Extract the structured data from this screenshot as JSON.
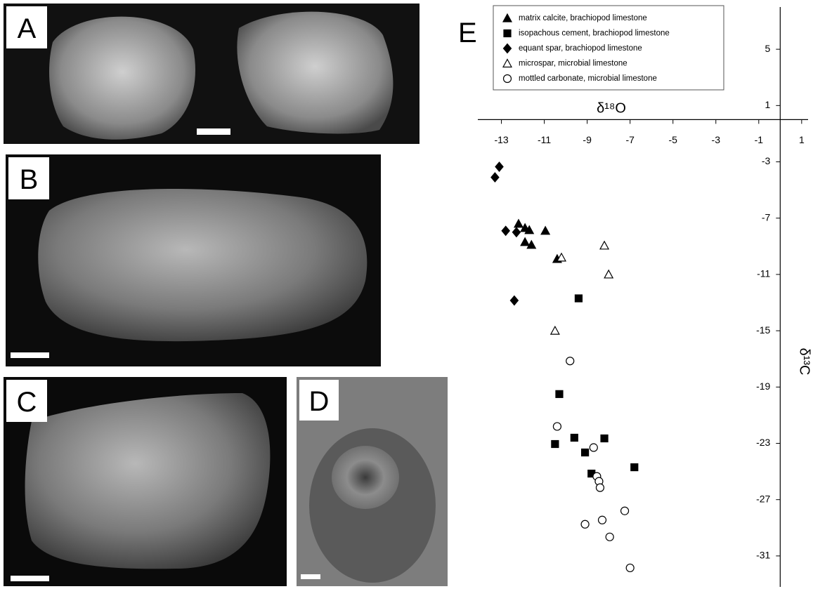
{
  "panels": {
    "labels": [
      "A",
      "B",
      "C",
      "D"
    ]
  },
  "chart_data": {
    "type": "scatter",
    "label": "E",
    "x_label": "δ¹⁸O",
    "y_label": "δ¹³C",
    "xlim": [
      -14.1,
      1.3
    ],
    "ylim": [
      -33.2,
      8
    ],
    "xticks": [
      -13,
      -11,
      -9,
      -7,
      -5,
      -3,
      -1,
      1
    ],
    "yticks": [
      5,
      1,
      -3,
      -7,
      -11,
      -15,
      -19,
      -23,
      -27,
      -31
    ],
    "legend": "top-left",
    "series": [
      {
        "name": "matrix calcite, brachiopod limestone",
        "marker": "triangle",
        "filled": true,
        "color": "#000",
        "x": [
          -12.2,
          -11.9,
          -11.7,
          -10.95,
          -11.9,
          -11.6,
          -10.4
        ],
        "values": [
          -7.4,
          -7.7,
          -7.85,
          -7.9,
          -8.7,
          -8.9,
          -9.9
        ]
      },
      {
        "name": "isopachous cement, brachiopod limestone",
        "marker": "square",
        "filled": true,
        "color": "#000",
        "x": [
          -9.4,
          -10.3,
          -10.5,
          -9.6,
          -9.1,
          -8.2,
          -6.8,
          -8.8
        ],
        "values": [
          -12.7,
          -19.5,
          -23.05,
          -22.6,
          -23.65,
          -22.65,
          -24.7,
          -25.15
        ]
      },
      {
        "name": "equant spar, brachiopod limestone",
        "marker": "diamond",
        "filled": true,
        "color": "#000",
        "x": [
          -13.1,
          -13.3,
          -12.8,
          -12.3,
          -12.4
        ],
        "values": [
          -3.35,
          -4.1,
          -7.9,
          -8.0,
          -12.85
        ]
      },
      {
        "name": "microspar, microbial limestone",
        "marker": "triangle",
        "filled": false,
        "color": "#000",
        "x": [
          -10.2,
          -8.2,
          -8.0,
          -10.5
        ],
        "values": [
          -9.8,
          -8.95,
          -11,
          -15
        ]
      },
      {
        "name": "mottled carbonate, microbial limestone",
        "marker": "circle",
        "filled": false,
        "color": "#000",
        "x": [
          -9.8,
          -10.4,
          -8.7,
          -8.55,
          -8.45,
          -8.4,
          -7.25,
          -8.3,
          -9.1,
          -7.95,
          -7.0
        ],
        "values": [
          -17.15,
          -21.8,
          -23.3,
          -25.35,
          -25.7,
          -26.15,
          -27.8,
          -28.45,
          -28.75,
          -29.65,
          -31.85
        ]
      }
    ]
  }
}
